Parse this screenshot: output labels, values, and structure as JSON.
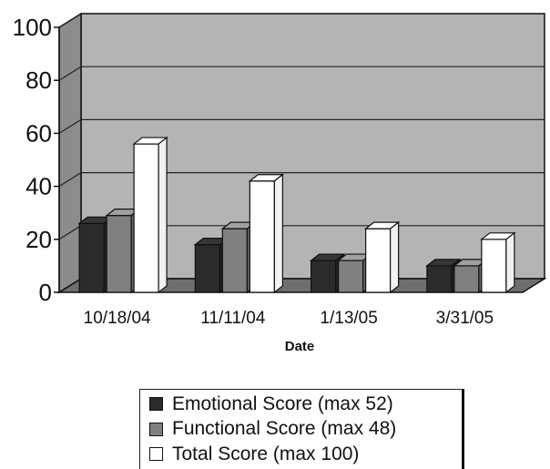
{
  "chart_data": {
    "type": "bar",
    "title": "",
    "xlabel": "Date",
    "ylabel": "",
    "ylim": [
      0,
      100
    ],
    "yticks": [
      0,
      20,
      40,
      60,
      80,
      100
    ],
    "grid": true,
    "three_d": true,
    "categories": [
      "10/18/04",
      "11/11/04",
      "1/13/05",
      "3/31/05"
    ],
    "series": [
      {
        "name": "Emotional Score (max 52)",
        "values": [
          26,
          18,
          12,
          10
        ],
        "color": "#2b2b2b"
      },
      {
        "name": "Functional Score (max 48)",
        "values": [
          29,
          24,
          12,
          10
        ],
        "color": "#808080"
      },
      {
        "name": "Total Score (max 100)",
        "values": [
          56,
          42,
          24,
          20
        ],
        "color": "#ffffff"
      }
    ],
    "legend_position": "bottom"
  },
  "colors": {
    "plot_back": "#b4b4b4",
    "plot_floor": "#6e6e6e",
    "plot_side": "#8c8c8c"
  }
}
